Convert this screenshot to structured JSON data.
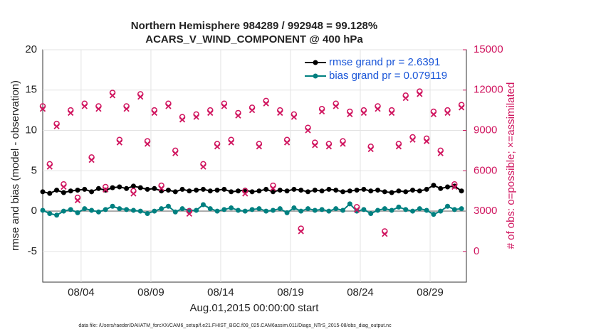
{
  "chart_data": {
    "type": "line",
    "title": "Northern Hemisphere 984289 / 992948 = 99.128%",
    "subtitle": "ACARS_V_WIND_COMPONENT @ 400 hPa",
    "x_label": "Aug.01,2015 00:00:00 start",
    "y_label": "rmse and bias (model - observation)",
    "y2_label": "# of obs: o=possible; ×=assimilated",
    "footnote": "data file: /Users/raeder/DAI/ATM_forcXX/CAM6_setup/f.e21.FHIST_BGC.f09_025.CAM6assim.011/Diags_NTrS_2015-08/obs_diag_output.nc",
    "x": [
      1.25,
      1.75,
      2.25,
      2.75,
      3.25,
      3.75,
      4.25,
      4.75,
      5.25,
      5.75,
      6.25,
      6.75,
      7.25,
      7.75,
      8.25,
      8.75,
      9.25,
      9.75,
      10.25,
      10.75,
      11.25,
      11.75,
      12.25,
      12.75,
      13.25,
      13.75,
      14.25,
      14.75,
      15.25,
      15.75,
      16.25,
      16.75,
      17.25,
      17.75,
      18.25,
      18.75,
      19.25,
      19.75,
      20.25,
      20.75,
      21.25,
      21.75,
      22.25,
      22.75,
      23.25,
      23.75,
      24.25,
      24.75,
      25.25,
      25.75,
      26.25,
      26.75,
      27.25,
      27.75,
      28.25,
      28.75,
      29.25,
      29.75,
      30.25,
      30.75,
      31.25
    ],
    "xlim": [
      1.25,
      31.6
    ],
    "xticks": [
      {
        "value": 4,
        "label": "08/04"
      },
      {
        "value": 9,
        "label": "08/09"
      },
      {
        "value": 14,
        "label": "08/14"
      },
      {
        "value": 19,
        "label": "08/19"
      },
      {
        "value": 24,
        "label": "08/24"
      },
      {
        "value": 29,
        "label": "08/29"
      }
    ],
    "ylim": [
      -8.8,
      20
    ],
    "yticks": [
      -5,
      0,
      5,
      10,
      15,
      20
    ],
    "y2lim": [
      -2280,
      15000
    ],
    "y2ticks": [
      0,
      3000,
      6000,
      9000,
      12000,
      15000
    ],
    "grid": true,
    "legend": "upper right",
    "series": [
      {
        "name": "rmse grand pr = 2.6391",
        "color": "#000000",
        "marker": "dot",
        "values": [
          2.4,
          2.2,
          2.6,
          2.3,
          2.5,
          2.6,
          2.7,
          2.4,
          2.8,
          2.6,
          2.9,
          3.0,
          2.8,
          3.1,
          2.9,
          2.7,
          2.8,
          2.5,
          2.6,
          2.4,
          2.7,
          2.5,
          2.6,
          2.7,
          2.5,
          2.6,
          2.7,
          2.4,
          2.5,
          2.6,
          2.4,
          2.5,
          2.7,
          2.4,
          2.6,
          2.5,
          2.7,
          2.6,
          2.4,
          2.6,
          2.5,
          2.7,
          2.6,
          2.4,
          2.5,
          2.6,
          2.7,
          2.5,
          2.6,
          2.4,
          2.3,
          2.5,
          2.4,
          2.6,
          2.5,
          2.7,
          3.2,
          2.8,
          3.0,
          3.1,
          2.5
        ]
      },
      {
        "name": "bias grand pr = 0.079119",
        "color": "#008080",
        "marker": "dot",
        "values": [
          0.1,
          -0.3,
          -0.5,
          0.0,
          0.2,
          -0.2,
          0.3,
          0.1,
          -0.1,
          0.2,
          0.6,
          0.3,
          0.2,
          0.1,
          0.0,
          -0.3,
          0.0,
          0.3,
          0.6,
          -0.1,
          0.3,
          0.1,
          0.1,
          0.8,
          0.3,
          0.0,
          0.2,
          0.4,
          0.1,
          0.0,
          0.2,
          0.3,
          0.0,
          0.1,
          0.3,
          -0.2,
          0.4,
          0.0,
          0.3,
          0.1,
          0.2,
          0.0,
          0.3,
          0.1,
          0.9,
          0.0,
          0.2,
          -0.3,
          0.1,
          0.3,
          0.1,
          0.5,
          0.2,
          0.0,
          0.3,
          0.1,
          -0.4,
          0.0,
          0.6,
          0.2,
          0.3
        ]
      },
      {
        "color": "#d0155f",
        "marker": "o",
        "axis": "y2",
        "values": [
          10800,
          6500,
          9500,
          5000,
          10500,
          4000,
          11000,
          7000,
          10800,
          4800,
          11800,
          8300,
          10800,
          4500,
          11700,
          8200,
          10500,
          4900,
          11000,
          7500,
          10000,
          3000,
          10200,
          6500,
          10500,
          8000,
          11000,
          8300,
          10300,
          4500,
          10700,
          8000,
          11200,
          4900,
          10500,
          8300,
          10200,
          1700,
          9200,
          8100,
          10600,
          8000,
          11000,
          8200,
          10400,
          3300,
          10500,
          7800,
          10800,
          1500,
          10500,
          8000,
          11600,
          8500,
          11900,
          8400,
          10400,
          7500,
          10500,
          5000,
          10900
        ]
      },
      {
        "color": "#d0155f",
        "marker": "x",
        "axis": "y2",
        "values": [
          10600,
          6300,
          9300,
          4800,
          10300,
          3800,
          10800,
          6800,
          10600,
          4600,
          11600,
          8100,
          10600,
          4300,
          11500,
          8000,
          10300,
          4700,
          10800,
          7300,
          9800,
          2800,
          10000,
          6300,
          10300,
          7800,
          10800,
          8100,
          10100,
          4300,
          10500,
          7800,
          11000,
          4700,
          10300,
          8100,
          10000,
          1500,
          9000,
          7900,
          10400,
          7800,
          10800,
          8000,
          10200,
          3100,
          10300,
          7600,
          10600,
          1300,
          10300,
          7800,
          11400,
          8300,
          11700,
          8200,
          10200,
          7300,
          10300,
          4800,
          10700
        ]
      }
    ]
  }
}
